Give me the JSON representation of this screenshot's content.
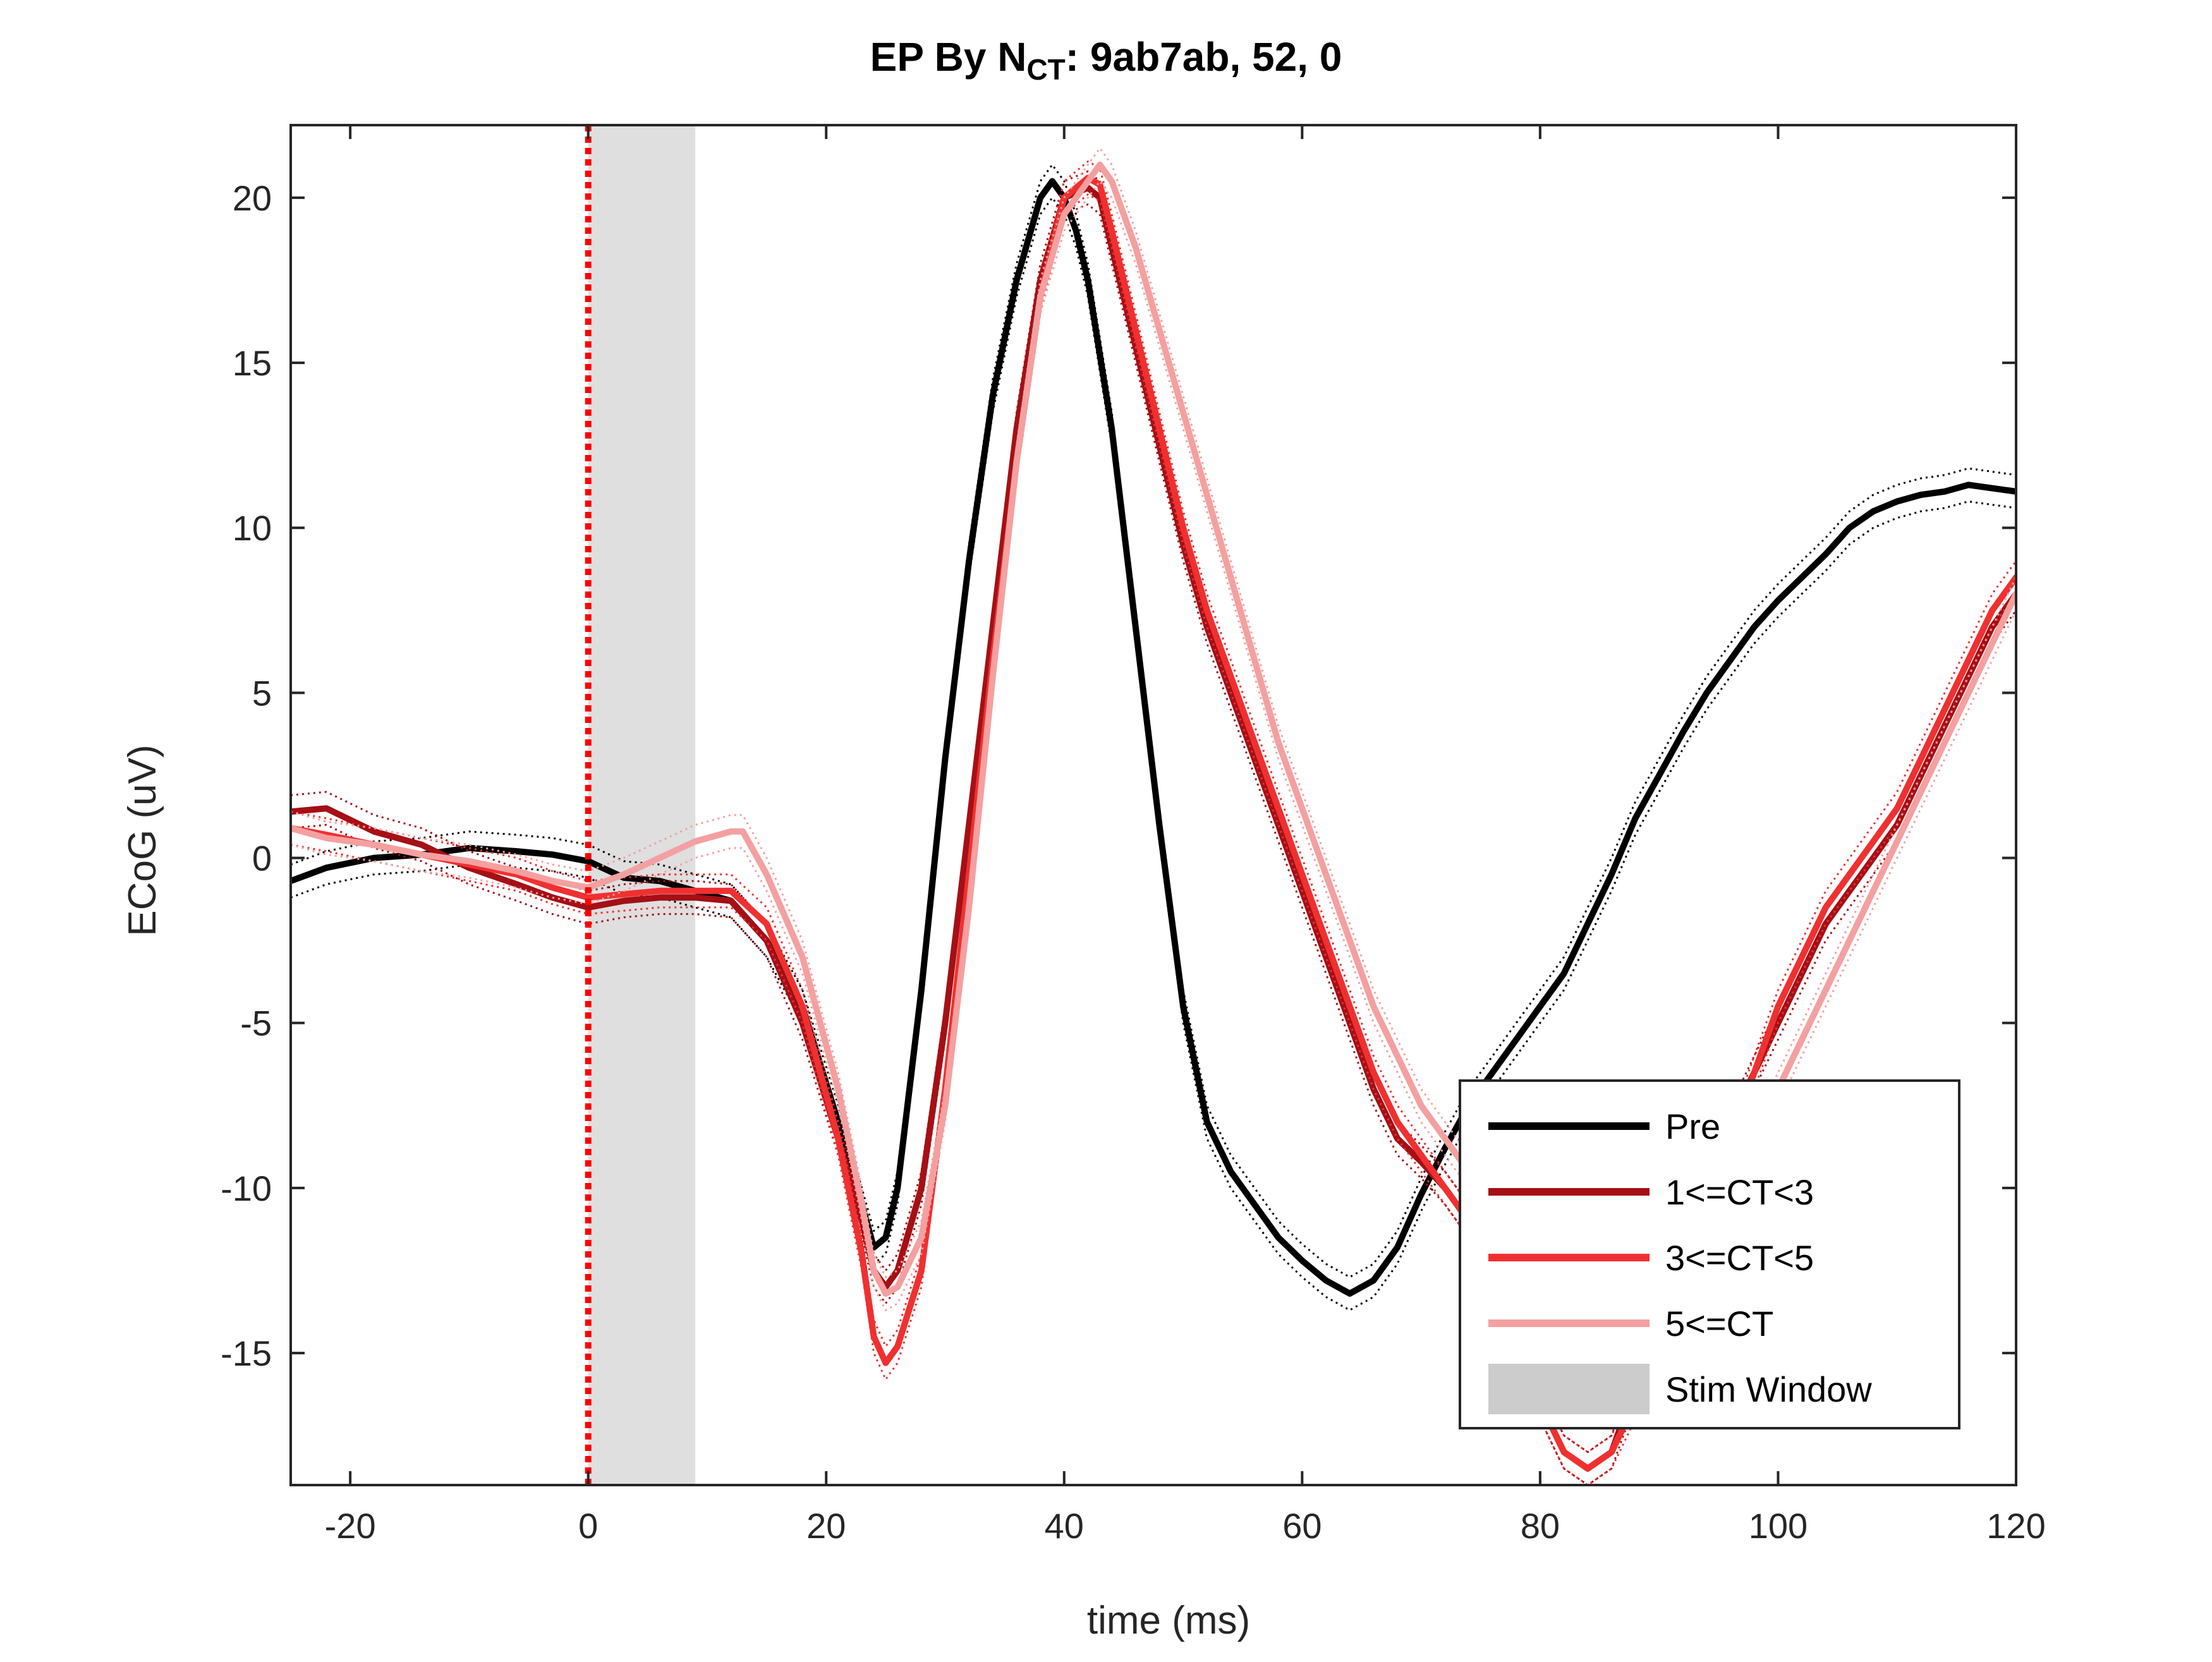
{
  "chart_data": {
    "type": "line",
    "title": {
      "prefix": "EP By N",
      "subscript": "CT",
      "suffix": ": 9ab7ab, 52, 0"
    },
    "xlabel": "time (ms)",
    "ylabel": "ECoG (uV)",
    "xlim": [
      -25,
      120
    ],
    "ylim": [
      -19,
      22.2
    ],
    "xticks": [
      -20,
      0,
      20,
      40,
      60,
      80,
      100,
      120
    ],
    "yticks": [
      -15,
      -10,
      -5,
      0,
      5,
      10,
      15,
      20
    ],
    "grid": false,
    "legend_position": "bottom-right",
    "stim_window": {
      "label": "Stim Window",
      "x": [
        0,
        9
      ],
      "color": "#d9d9d9"
    },
    "stim_onset": {
      "x": 0,
      "color": "#ff0000",
      "style": "dotted"
    },
    "series": [
      {
        "name": "Pre",
        "color": "#000000",
        "x": [
          -25,
          -22,
          -18,
          -14,
          -10,
          -6,
          -3,
          0,
          3,
          6,
          9,
          12,
          15,
          18,
          21,
          23,
          24,
          25,
          26,
          28,
          30,
          32,
          34,
          36,
          38,
          39,
          40,
          41,
          42,
          44,
          46,
          48,
          50,
          52,
          54,
          56,
          58,
          60,
          62,
          64,
          66,
          68,
          70,
          72,
          74,
          76,
          78,
          80,
          82,
          84,
          86,
          88,
          90,
          92,
          94,
          96,
          98,
          100,
          102,
          104,
          106,
          108,
          110,
          112,
          114,
          116,
          118,
          120
        ],
        "y": [
          -0.7,
          -0.3,
          0.0,
          0.1,
          0.3,
          0.2,
          0.1,
          -0.1,
          -0.6,
          -0.7,
          -1.0,
          -1.3,
          -2.5,
          -4.5,
          -8.0,
          -10.5,
          -11.8,
          -11.5,
          -10.0,
          -4.0,
          3.0,
          9.0,
          14.0,
          17.5,
          20.0,
          20.5,
          20.0,
          19.0,
          17.5,
          13.0,
          7.0,
          1.0,
          -4.5,
          -8.0,
          -9.5,
          -10.5,
          -11.5,
          -12.2,
          -12.8,
          -13.2,
          -12.8,
          -11.8,
          -10.2,
          -8.8,
          -7.5,
          -6.5,
          -5.5,
          -4.5,
          -3.5,
          -2.0,
          -0.5,
          1.2,
          2.5,
          3.8,
          5.0,
          6.0,
          7.0,
          7.8,
          8.5,
          9.2,
          10.0,
          10.5,
          10.8,
          11.0,
          11.1,
          11.3,
          11.2,
          11.1
        ]
      },
      {
        "name": "1<=CT<3",
        "color": "#a50f15",
        "x": [
          -25,
          -22,
          -18,
          -14,
          -10,
          -6,
          -3,
          0,
          3,
          6,
          9,
          12,
          15,
          18,
          21,
          23,
          24,
          25,
          26,
          28,
          30,
          32,
          34,
          36,
          38,
          40,
          42,
          43,
          44,
          46,
          48,
          50,
          52,
          54,
          56,
          58,
          60,
          62,
          64,
          66,
          68,
          70,
          72,
          74,
          76,
          78,
          80,
          82,
          84,
          86,
          88,
          90,
          92,
          94,
          96,
          98,
          100,
          102,
          104,
          106,
          108,
          110,
          112,
          114,
          116,
          118,
          120
        ],
        "y": [
          1.4,
          1.5,
          0.8,
          0.4,
          -0.3,
          -0.8,
          -1.2,
          -1.5,
          -1.3,
          -1.2,
          -1.2,
          -1.3,
          -2.5,
          -5.0,
          -8.5,
          -11.0,
          -12.5,
          -13.0,
          -12.5,
          -10.0,
          -5.0,
          1.0,
          7.0,
          13.0,
          17.5,
          20.0,
          20.3,
          20.0,
          18.5,
          15.5,
          12.5,
          9.5,
          7.0,
          5.0,
          3.0,
          1.0,
          -1.0,
          -3.0,
          -5.0,
          -7.0,
          -8.5,
          -9.2,
          -10.0,
          -11.0,
          -12.5,
          -14.5,
          -16.5,
          -18.0,
          -18.5,
          -18.0,
          -16.0,
          -14.0,
          -12.0,
          -10.0,
          -8.0,
          -6.5,
          -5.0,
          -3.5,
          -2.0,
          -1.0,
          0.0,
          1.0,
          2.5,
          4.0,
          5.5,
          7.0,
          8.0
        ]
      },
      {
        "name": "3<=CT<5",
        "color": "#f03030",
        "x": [
          -25,
          -22,
          -18,
          -14,
          -10,
          -6,
          -3,
          0,
          3,
          6,
          9,
          12,
          15,
          18,
          21,
          23,
          24,
          25,
          26,
          28,
          30,
          32,
          34,
          36,
          38,
          40,
          42,
          43,
          44,
          46,
          48,
          50,
          52,
          54,
          56,
          58,
          60,
          62,
          64,
          66,
          68,
          70,
          72,
          74,
          76,
          78,
          80,
          82,
          84,
          86,
          88,
          90,
          92,
          94,
          96,
          98,
          100,
          102,
          104,
          106,
          108,
          110,
          112,
          114,
          116,
          118,
          120
        ],
        "y": [
          0.9,
          0.7,
          0.4,
          0.1,
          -0.2,
          -0.5,
          -0.9,
          -1.2,
          -1.1,
          -1.0,
          -1.0,
          -1.0,
          -2.0,
          -4.5,
          -8.5,
          -12.0,
          -14.5,
          -15.3,
          -14.8,
          -12.5,
          -7.0,
          -0.5,
          6.0,
          12.0,
          17.0,
          20.0,
          20.6,
          20.4,
          19.0,
          16.0,
          13.0,
          10.0,
          7.5,
          5.5,
          3.5,
          1.5,
          -0.5,
          -2.5,
          -4.5,
          -6.5,
          -8.0,
          -9.0,
          -10.0,
          -11.0,
          -12.5,
          -14.5,
          -16.5,
          -18.0,
          -18.5,
          -18.0,
          -16.5,
          -14.5,
          -12.5,
          -10.5,
          -8.5,
          -6.5,
          -4.5,
          -3.0,
          -1.5,
          -0.5,
          0.5,
          1.5,
          3.0,
          4.5,
          6.0,
          7.5,
          8.5
        ]
      },
      {
        "name": "5<=CT",
        "color": "#f4a0a0",
        "x": [
          -25,
          -22,
          -18,
          -14,
          -10,
          -6,
          -3,
          0,
          3,
          6,
          9,
          12,
          13,
          15,
          18,
          21,
          23,
          24,
          25,
          26,
          28,
          30,
          32,
          34,
          36,
          38,
          40,
          42,
          43,
          44,
          46,
          48,
          50,
          52,
          54,
          56,
          58,
          60,
          62,
          64,
          66,
          68,
          70,
          72,
          74,
          76,
          78,
          80,
          82,
          84,
          86,
          88,
          90,
          92,
          94,
          96,
          98,
          100,
          102,
          104,
          106,
          108,
          110,
          112,
          114,
          116,
          118,
          120
        ],
        "y": [
          0.9,
          0.6,
          0.4,
          0.1,
          -0.1,
          -0.4,
          -0.7,
          -0.9,
          -0.5,
          0.0,
          0.5,
          0.8,
          0.8,
          -0.5,
          -3.0,
          -7.0,
          -10.5,
          -12.5,
          -13.2,
          -13.0,
          -11.5,
          -7.5,
          -1.5,
          5.5,
          12.0,
          17.0,
          19.5,
          20.5,
          21.0,
          20.5,
          18.5,
          16.0,
          13.5,
          11.0,
          8.5,
          6.0,
          3.5,
          1.5,
          -0.5,
          -2.5,
          -4.5,
          -6.0,
          -7.5,
          -8.5,
          -9.5,
          -11.0,
          -12.5,
          -14.0,
          -15.5,
          -16.5,
          -16.5,
          -15.5,
          -14.5,
          -13.0,
          -11.5,
          -10.0,
          -8.5,
          -7.0,
          -5.5,
          -4.0,
          -2.5,
          -1.0,
          0.5,
          2.0,
          3.5,
          5.0,
          6.5,
          8.0
        ]
      }
    ]
  }
}
